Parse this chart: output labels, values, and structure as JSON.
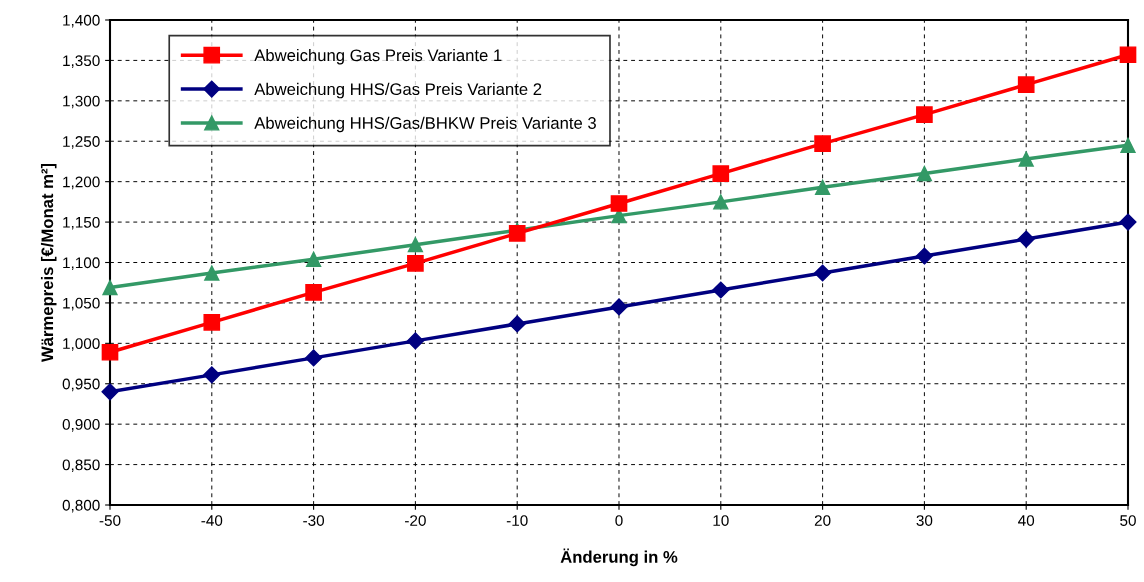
{
  "chart_data": {
    "type": "line",
    "xlabel": "Änderung in %",
    "ylabel": "Wärmepreis [€/Monat m²]",
    "x": [
      -50,
      -40,
      -30,
      -20,
      -10,
      0,
      10,
      20,
      30,
      40,
      50
    ],
    "series": [
      {
        "name": "Abweichung Gas Preis Variante 1",
        "color": "#ff0000",
        "marker": "square",
        "values": [
          0.989,
          1.026,
          1.063,
          1.099,
          1.136,
          1.173,
          1.21,
          1.247,
          1.283,
          1.32,
          1.357
        ]
      },
      {
        "name": "Abweichung HHS/Gas Preis Variante 2",
        "color": "#000080",
        "marker": "diamond",
        "values": [
          0.94,
          0.961,
          0.982,
          1.003,
          1.024,
          1.045,
          1.066,
          1.087,
          1.108,
          1.129,
          1.15
        ]
      },
      {
        "name": "Abweichung HHS/Gas/BHKW Preis Variante 3",
        "color": "#339966",
        "marker": "triangle",
        "values": [
          1.069,
          1.087,
          1.104,
          1.122,
          1.14,
          1.158,
          1.175,
          1.193,
          1.21,
          1.228,
          1.245
        ]
      }
    ],
    "xlim": [
      -50,
      50
    ],
    "xticks": [
      -50,
      -40,
      -30,
      -20,
      -10,
      0,
      10,
      20,
      30,
      40,
      50
    ],
    "ylim": [
      0.8,
      1.4
    ],
    "yticks": [
      {
        "value": 0.8,
        "label": "0,800"
      },
      {
        "value": 0.85,
        "label": "0,850"
      },
      {
        "value": 0.9,
        "label": "0,900"
      },
      {
        "value": 0.95,
        "label": "0,950"
      },
      {
        "value": 1.0,
        "label": "1,000"
      },
      {
        "value": 1.05,
        "label": "1,050"
      },
      {
        "value": 1.1,
        "label": "1,100"
      },
      {
        "value": 1.15,
        "label": "1,150"
      },
      {
        "value": 1.2,
        "label": "1,200"
      },
      {
        "value": 1.25,
        "label": "1,250"
      },
      {
        "value": 1.3,
        "label": "1,300"
      },
      {
        "value": 1.35,
        "label": "1,350"
      },
      {
        "value": 1.4,
        "label": "1,400"
      }
    ],
    "grid": true,
    "legend": "top left",
    "line_style": "solid"
  }
}
